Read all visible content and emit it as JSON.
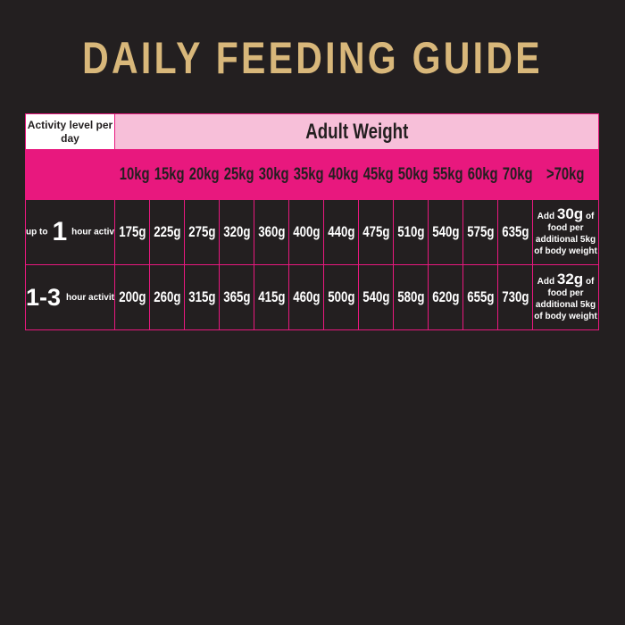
{
  "title": "DAILY FEEDING GUIDE",
  "table": {
    "corner_label": "Activity level per day",
    "group_header": "Adult Weight",
    "weights": [
      "10kg",
      "15kg",
      "20kg",
      "25kg",
      "30kg",
      "35kg",
      "40kg",
      "45kg",
      "50kg",
      "55kg",
      "60kg",
      "70kg"
    ],
    "over_label": ">70kg",
    "rows": [
      {
        "activity_prefix": "up to",
        "activity_number": "1",
        "activity_suffix": "hour activity",
        "values": [
          "175g",
          "225g",
          "275g",
          "320g",
          "360g",
          "400g",
          "440g",
          "475g",
          "510g",
          "540g",
          "575g",
          "635g"
        ],
        "note_add": "Add",
        "note_amount": "30g",
        "note_of": "of",
        "note_line2": "food per",
        "note_line3": "additional 5kg",
        "note_line4": "of body weight"
      },
      {
        "activity_prefix": "",
        "activity_number": "1-3",
        "activity_suffix": "hour activity",
        "values": [
          "200g",
          "260g",
          "315g",
          "365g",
          "415g",
          "460g",
          "500g",
          "540g",
          "580g",
          "620g",
          "655g",
          "730g"
        ],
        "note_add": "Add",
        "note_amount": "32g",
        "note_of": "of",
        "note_line2": "food per",
        "note_line3": "additional 5kg",
        "note_line4": "of body weight"
      }
    ]
  },
  "colors": {
    "background": "#231f20",
    "title_gold": "#d8b77a",
    "pink": "#e8187e",
    "light_pink": "#f7bfd9"
  }
}
